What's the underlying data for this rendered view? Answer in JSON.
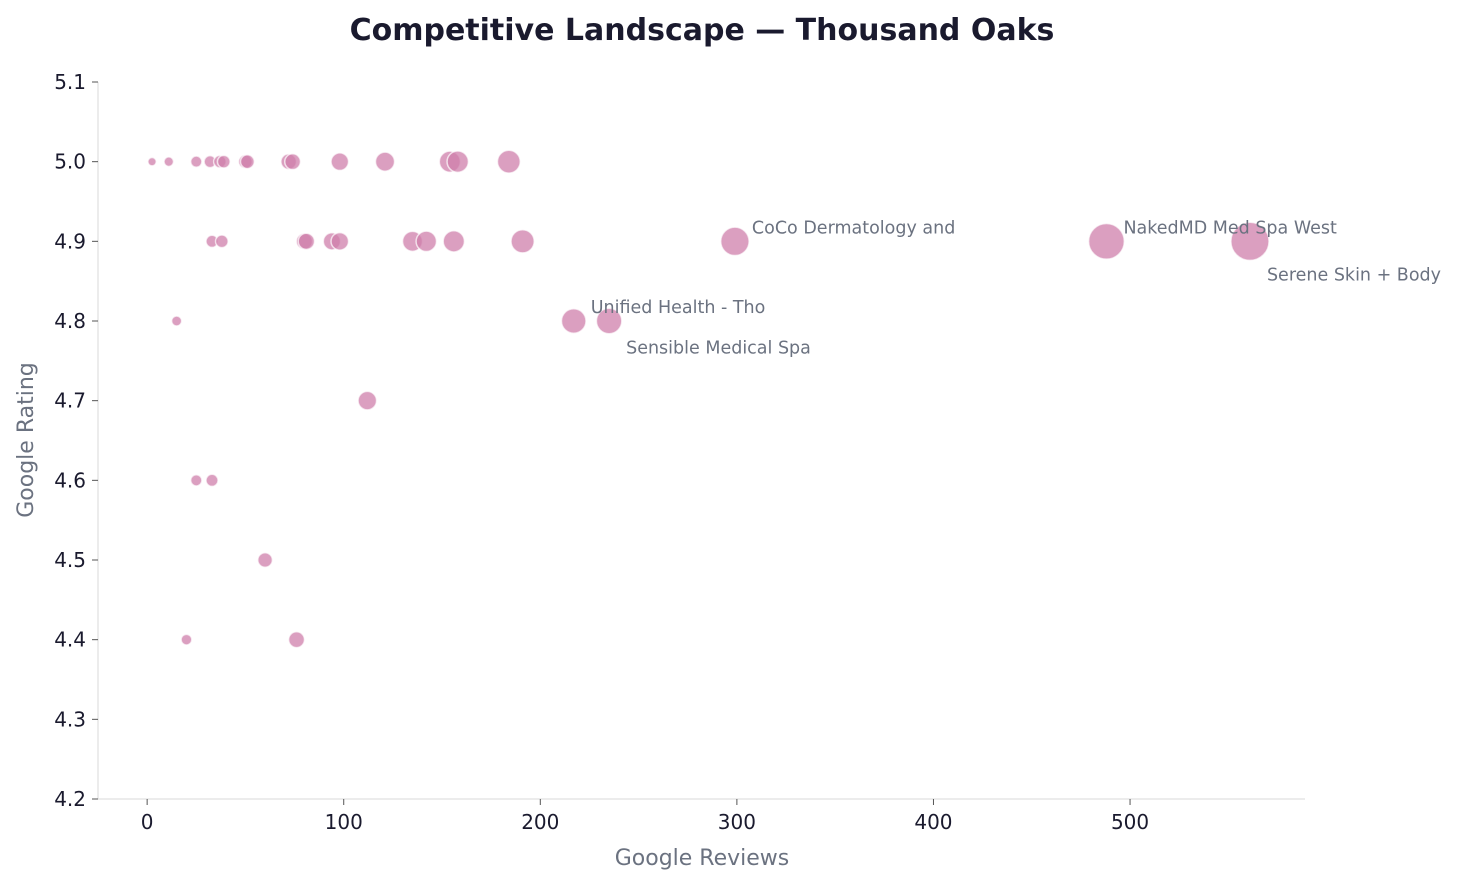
{
  "chart_data": {
    "type": "scatter",
    "title": "Competitive Landscape — Thousand Oaks",
    "xlabel": "Google Reviews",
    "ylabel": "Google Rating",
    "xlim": [
      -25,
      589
    ],
    "ylim": [
      4.2,
      5.1
    ],
    "xticks": [
      0,
      100,
      200,
      300,
      400,
      500
    ],
    "yticks": [
      "4.2",
      "4.3",
      "4.4",
      "4.5",
      "4.6",
      "4.7",
      "4.8",
      "4.9",
      "5.0",
      "5.1"
    ],
    "grid": false,
    "marker_color": "#cf7fab",
    "marker_size_encodes": "Google Reviews",
    "points": [
      {
        "x": 2.5,
        "y": 5.0
      },
      {
        "x": 11,
        "y": 5.0
      },
      {
        "x": 25,
        "y": 5.0
      },
      {
        "x": 32,
        "y": 5.0
      },
      {
        "x": 37,
        "y": 5.0
      },
      {
        "x": 39,
        "y": 5.0
      },
      {
        "x": 50,
        "y": 5.0
      },
      {
        "x": 51,
        "y": 5.0
      },
      {
        "x": 72,
        "y": 5.0
      },
      {
        "x": 74,
        "y": 5.0
      },
      {
        "x": 98,
        "y": 5.0
      },
      {
        "x": 121,
        "y": 5.0
      },
      {
        "x": 154,
        "y": 5.0
      },
      {
        "x": 158,
        "y": 5.0
      },
      {
        "x": 184,
        "y": 5.0
      },
      {
        "x": 33,
        "y": 4.9
      },
      {
        "x": 38,
        "y": 4.9
      },
      {
        "x": 80,
        "y": 4.9
      },
      {
        "x": 81,
        "y": 4.9
      },
      {
        "x": 94,
        "y": 4.9
      },
      {
        "x": 98,
        "y": 4.9
      },
      {
        "x": 135,
        "y": 4.9
      },
      {
        "x": 142,
        "y": 4.9
      },
      {
        "x": 156,
        "y": 4.9
      },
      {
        "x": 191,
        "y": 4.9
      },
      {
        "x": 299,
        "y": 4.9,
        "label": "CoCo Dermatology and"
      },
      {
        "x": 488,
        "y": 4.9,
        "label": "NakedMD Med Spa West"
      },
      {
        "x": 561,
        "y": 4.9,
        "label": "Serene Skin + Body"
      },
      {
        "x": 15,
        "y": 4.8
      },
      {
        "x": 217,
        "y": 4.8,
        "label": "Unified Health - Tho"
      },
      {
        "x": 235,
        "y": 4.8,
        "label": "Sensible Medical Spa"
      },
      {
        "x": 112,
        "y": 4.7
      },
      {
        "x": 25,
        "y": 4.6
      },
      {
        "x": 33,
        "y": 4.6
      },
      {
        "x": 60,
        "y": 4.5
      },
      {
        "x": 20,
        "y": 4.4
      },
      {
        "x": 76,
        "y": 4.4
      }
    ]
  }
}
